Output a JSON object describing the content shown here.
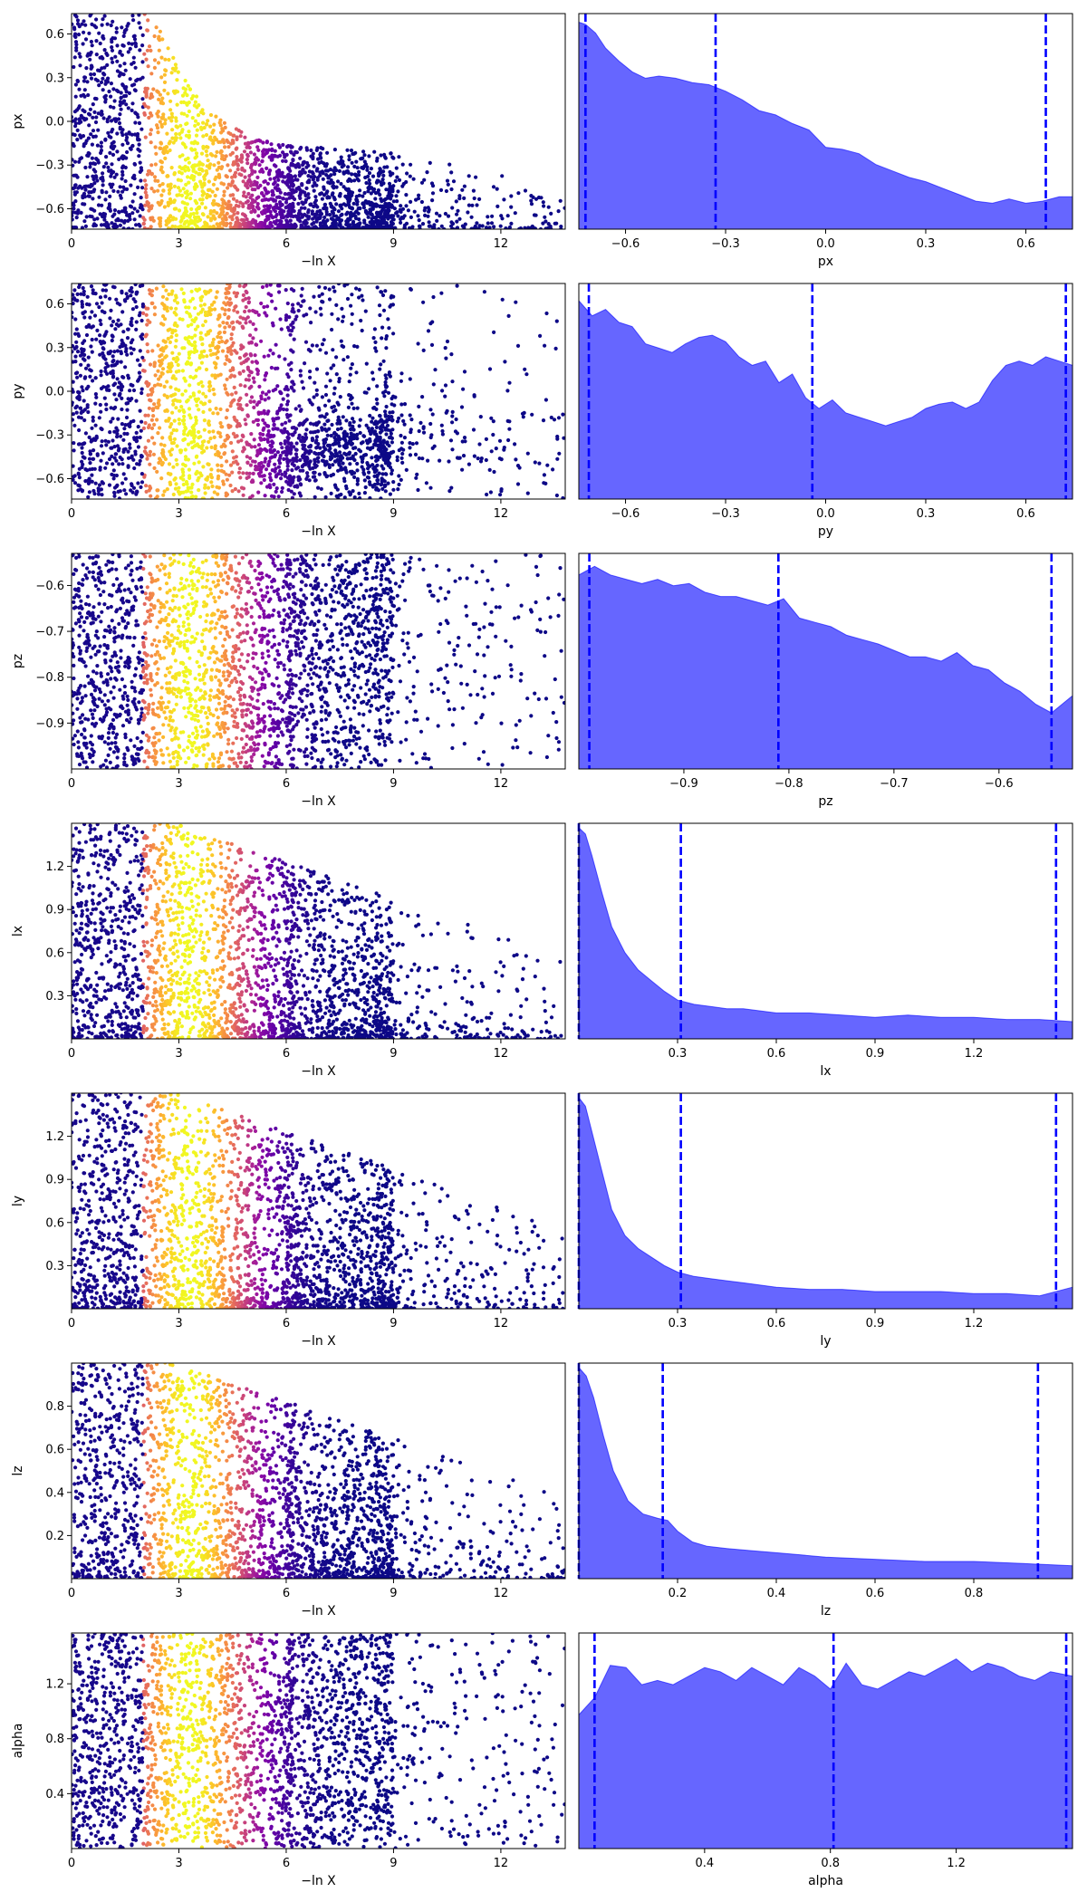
{
  "chart_data": [
    {
      "type": "scatter",
      "parameter": "px",
      "xlabel": "−ln X",
      "ylabel": "px",
      "xlim": [
        0,
        13.8
      ],
      "ylim": [
        -0.74,
        0.74
      ],
      "xticks": [
        0,
        3,
        6,
        9,
        12
      ],
      "xtick_labels": [
        "0",
        "3",
        "6",
        "9",
        "12"
      ],
      "yticks": [
        -0.6,
        -0.3,
        0.0,
        0.3,
        0.6
      ],
      "ytick_labels": [
        "−0.6",
        "−0.3",
        "0.0",
        "0.3",
        "0.6"
      ],
      "colormap": "plasma",
      "envelope_x": [
        0,
        1.8,
        2.2,
        2.6,
        3.0,
        3.4,
        4.0,
        4.6,
        5.2,
        6.0,
        7.0,
        8.0,
        9.0,
        10.0,
        11.0,
        12.0,
        13.5
      ],
      "envelope_y": [
        0.74,
        0.74,
        0.74,
        0.58,
        0.38,
        0.2,
        0.05,
        -0.05,
        -0.12,
        -0.16,
        -0.18,
        -0.2,
        -0.22,
        -0.26,
        -0.3,
        -0.36,
        -0.45
      ]
    },
    {
      "type": "area",
      "parameter": "px",
      "xlabel": "px",
      "xlim": [
        -0.74,
        0.74
      ],
      "xticks": [
        -0.6,
        -0.3,
        0.0,
        0.3,
        0.6
      ],
      "xtick_labels": [
        "−0.6",
        "−0.3",
        "0.0",
        "0.3",
        "0.6"
      ],
      "density_x": [
        -0.74,
        -0.72,
        -0.69,
        -0.66,
        -0.62,
        -0.58,
        -0.54,
        -0.5,
        -0.45,
        -0.4,
        -0.35,
        -0.3,
        -0.25,
        -0.2,
        -0.15,
        -0.1,
        -0.05,
        0.0,
        0.05,
        0.1,
        0.15,
        0.2,
        0.25,
        0.3,
        0.35,
        0.4,
        0.45,
        0.5,
        0.55,
        0.6,
        0.65,
        0.7,
        0.74
      ],
      "density_y": [
        0.96,
        0.95,
        0.91,
        0.84,
        0.78,
        0.73,
        0.7,
        0.71,
        0.7,
        0.68,
        0.67,
        0.64,
        0.6,
        0.55,
        0.53,
        0.49,
        0.46,
        0.38,
        0.37,
        0.35,
        0.3,
        0.27,
        0.24,
        0.22,
        0.19,
        0.16,
        0.13,
        0.12,
        0.14,
        0.12,
        0.13,
        0.15,
        0.15
      ],
      "dashed_lines_x": [
        -0.72,
        -0.33,
        0.66
      ],
      "fill_color": "#6666ff",
      "line_color": "#0000ff"
    },
    {
      "type": "scatter",
      "parameter": "py",
      "xlabel": "−ln X",
      "ylabel": "py",
      "xlim": [
        0,
        13.8
      ],
      "ylim": [
        -0.74,
        0.74
      ],
      "xticks": [
        0,
        3,
        6,
        9,
        12
      ],
      "xtick_labels": [
        "0",
        "3",
        "6",
        "9",
        "12"
      ],
      "yticks": [
        -0.6,
        -0.3,
        0.0,
        0.3,
        0.6
      ],
      "ytick_labels": [
        "−0.6",
        "−0.3",
        "0.0",
        "0.3",
        "0.6"
      ],
      "colormap": "plasma",
      "cluster_center": [
        -0.4
      ]
    },
    {
      "type": "area",
      "parameter": "py",
      "xlabel": "py",
      "xlim": [
        -0.74,
        0.74
      ],
      "xticks": [
        -0.6,
        -0.3,
        0.0,
        0.3,
        0.6
      ],
      "xtick_labels": [
        "−0.6",
        "−0.3",
        "0.0",
        "0.3",
        "0.6"
      ],
      "density_x": [
        -0.74,
        -0.7,
        -0.66,
        -0.62,
        -0.58,
        -0.54,
        -0.5,
        -0.46,
        -0.42,
        -0.38,
        -0.34,
        -0.3,
        -0.26,
        -0.22,
        -0.18,
        -0.14,
        -0.1,
        -0.06,
        -0.02,
        0.02,
        0.06,
        0.1,
        0.14,
        0.18,
        0.22,
        0.26,
        0.3,
        0.34,
        0.38,
        0.42,
        0.46,
        0.5,
        0.54,
        0.58,
        0.62,
        0.66,
        0.7,
        0.74
      ],
      "density_y": [
        0.92,
        0.85,
        0.88,
        0.82,
        0.8,
        0.72,
        0.7,
        0.68,
        0.72,
        0.75,
        0.76,
        0.73,
        0.66,
        0.62,
        0.64,
        0.54,
        0.58,
        0.47,
        0.42,
        0.46,
        0.4,
        0.38,
        0.36,
        0.34,
        0.36,
        0.38,
        0.42,
        0.44,
        0.45,
        0.42,
        0.45,
        0.55,
        0.62,
        0.64,
        0.62,
        0.66,
        0.64,
        0.62
      ],
      "dashed_lines_x": [
        -0.71,
        -0.04,
        0.72
      ],
      "fill_color": "#6666ff",
      "line_color": "#0000ff"
    },
    {
      "type": "scatter",
      "parameter": "pz",
      "xlabel": "−ln X",
      "ylabel": "pz",
      "xlim": [
        0,
        13.8
      ],
      "ylim": [
        -1.0,
        -0.53
      ],
      "xticks": [
        0,
        3,
        6,
        9,
        12
      ],
      "xtick_labels": [
        "0",
        "3",
        "6",
        "9",
        "12"
      ],
      "yticks": [
        -0.9,
        -0.8,
        -0.7,
        -0.6
      ],
      "ytick_labels": [
        "−0.9",
        "−0.8",
        "−0.7",
        "−0.6"
      ],
      "colormap": "plasma"
    },
    {
      "type": "area",
      "parameter": "pz",
      "xlabel": "pz",
      "xlim": [
        -1.0,
        -0.53
      ],
      "xticks": [
        -0.9,
        -0.8,
        -0.7,
        -0.6
      ],
      "xtick_labels": [
        "−0.9",
        "−0.8",
        "−0.7",
        "−0.6"
      ],
      "density_x": [
        -1.0,
        -0.985,
        -0.97,
        -0.955,
        -0.94,
        -0.925,
        -0.91,
        -0.895,
        -0.88,
        -0.865,
        -0.85,
        -0.835,
        -0.82,
        -0.805,
        -0.79,
        -0.775,
        -0.76,
        -0.745,
        -0.73,
        -0.715,
        -0.7,
        -0.685,
        -0.67,
        -0.655,
        -0.64,
        -0.625,
        -0.61,
        -0.595,
        -0.58,
        -0.565,
        -0.55,
        -0.53
      ],
      "density_y": [
        0.9,
        0.94,
        0.9,
        0.88,
        0.86,
        0.88,
        0.85,
        0.86,
        0.82,
        0.8,
        0.8,
        0.78,
        0.76,
        0.79,
        0.7,
        0.68,
        0.66,
        0.62,
        0.6,
        0.58,
        0.55,
        0.52,
        0.52,
        0.5,
        0.54,
        0.48,
        0.46,
        0.4,
        0.36,
        0.3,
        0.26,
        0.34
      ],
      "dashed_lines_x": [
        -0.99,
        -0.81,
        -0.55
      ],
      "fill_color": "#6666ff",
      "line_color": "#0000ff"
    },
    {
      "type": "scatter",
      "parameter": "lx",
      "xlabel": "−ln X",
      "ylabel": "lx",
      "xlim": [
        0,
        13.8
      ],
      "ylim": [
        0.0,
        1.5
      ],
      "xticks": [
        0,
        3,
        6,
        9,
        12
      ],
      "xtick_labels": [
        "0",
        "3",
        "6",
        "9",
        "12"
      ],
      "yticks": [
        0.3,
        0.6,
        0.9,
        1.2
      ],
      "ytick_labels": [
        "0.3",
        "0.6",
        "0.9",
        "1.2"
      ],
      "colormap": "plasma"
    },
    {
      "type": "area",
      "parameter": "lx",
      "xlabel": "lx",
      "xlim": [
        0.0,
        1.5
      ],
      "xticks": [
        0.3,
        0.6,
        0.9,
        1.2
      ],
      "xtick_labels": [
        "0.3",
        "0.6",
        "0.9",
        "1.2"
      ],
      "density_x": [
        0.0,
        0.02,
        0.04,
        0.07,
        0.1,
        0.14,
        0.18,
        0.22,
        0.26,
        0.3,
        0.35,
        0.4,
        0.45,
        0.5,
        0.6,
        0.7,
        0.8,
        0.9,
        1.0,
        1.1,
        1.2,
        1.3,
        1.4,
        1.5
      ],
      "density_y": [
        0.98,
        0.95,
        0.85,
        0.68,
        0.52,
        0.4,
        0.32,
        0.27,
        0.22,
        0.18,
        0.16,
        0.15,
        0.14,
        0.14,
        0.12,
        0.12,
        0.11,
        0.1,
        0.11,
        0.1,
        0.1,
        0.09,
        0.09,
        0.08
      ],
      "dashed_lines_x": [
        0.0,
        0.31,
        1.45
      ],
      "fill_color": "#6666ff",
      "line_color": "#0000ff"
    },
    {
      "type": "scatter",
      "parameter": "ly",
      "xlabel": "−ln X",
      "ylabel": "ly",
      "xlim": [
        0,
        13.8
      ],
      "ylim": [
        0.0,
        1.5
      ],
      "xticks": [
        0,
        3,
        6,
        9,
        12
      ],
      "xtick_labels": [
        "0",
        "3",
        "6",
        "9",
        "12"
      ],
      "yticks": [
        0.3,
        0.6,
        0.9,
        1.2
      ],
      "ytick_labels": [
        "0.3",
        "0.6",
        "0.9",
        "1.2"
      ],
      "colormap": "plasma"
    },
    {
      "type": "area",
      "parameter": "ly",
      "xlabel": "ly",
      "xlim": [
        0.0,
        1.5
      ],
      "xticks": [
        0.3,
        0.6,
        0.9,
        1.2
      ],
      "xtick_labels": [
        "0.3",
        "0.6",
        "0.9",
        "1.2"
      ],
      "density_x": [
        0.0,
        0.02,
        0.04,
        0.07,
        0.1,
        0.14,
        0.18,
        0.22,
        0.26,
        0.3,
        0.35,
        0.4,
        0.45,
        0.5,
        0.6,
        0.7,
        0.8,
        0.9,
        1.0,
        1.1,
        1.2,
        1.3,
        1.4,
        1.5
      ],
      "density_y": [
        0.98,
        0.94,
        0.82,
        0.64,
        0.46,
        0.34,
        0.28,
        0.24,
        0.2,
        0.17,
        0.15,
        0.14,
        0.13,
        0.12,
        0.1,
        0.09,
        0.09,
        0.08,
        0.08,
        0.08,
        0.07,
        0.07,
        0.06,
        0.1
      ],
      "dashed_lines_x": [
        0.0,
        0.31,
        1.45
      ],
      "fill_color": "#6666ff",
      "line_color": "#0000ff"
    },
    {
      "type": "scatter",
      "parameter": "lz",
      "xlabel": "−ln X",
      "ylabel": "lz",
      "xlim": [
        0,
        13.8
      ],
      "ylim": [
        0.0,
        1.0
      ],
      "xticks": [
        0,
        3,
        6,
        9,
        12
      ],
      "xtick_labels": [
        "0",
        "3",
        "6",
        "9",
        "12"
      ],
      "yticks": [
        0.2,
        0.4,
        0.6,
        0.8
      ],
      "ytick_labels": [
        "0.2",
        "0.4",
        "0.6",
        "0.8"
      ],
      "colormap": "plasma"
    },
    {
      "type": "area",
      "parameter": "lz",
      "xlabel": "lz",
      "xlim": [
        0.0,
        1.0
      ],
      "xticks": [
        0.2,
        0.4,
        0.6,
        0.8
      ],
      "xtick_labels": [
        "0.2",
        "0.4",
        "0.6",
        "0.8"
      ],
      "density_x": [
        0.0,
        0.015,
        0.03,
        0.05,
        0.07,
        0.1,
        0.13,
        0.16,
        0.18,
        0.2,
        0.23,
        0.26,
        0.3,
        0.35,
        0.4,
        0.45,
        0.5,
        0.6,
        0.7,
        0.8,
        0.9,
        1.0
      ],
      "density_y": [
        0.98,
        0.94,
        0.84,
        0.66,
        0.5,
        0.36,
        0.3,
        0.28,
        0.27,
        0.22,
        0.17,
        0.15,
        0.14,
        0.13,
        0.12,
        0.11,
        0.1,
        0.09,
        0.08,
        0.08,
        0.07,
        0.06
      ],
      "dashed_lines_x": [
        0.0,
        0.17,
        0.93
      ],
      "fill_color": "#6666ff",
      "line_color": "#0000ff"
    },
    {
      "type": "scatter",
      "parameter": "alpha",
      "xlabel": "−ln X",
      "ylabel": "alpha",
      "xlim": [
        0,
        13.8
      ],
      "ylim": [
        0.0,
        1.57
      ],
      "xticks": [
        0,
        3,
        6,
        9,
        12
      ],
      "xtick_labels": [
        "0",
        "3",
        "6",
        "9",
        "12"
      ],
      "yticks": [
        0.4,
        0.8,
        1.2
      ],
      "ytick_labels": [
        "0.4",
        "0.8",
        "1.2"
      ],
      "colormap": "plasma"
    },
    {
      "type": "area",
      "parameter": "alpha",
      "xlabel": "alpha",
      "xlim": [
        0.0,
        1.57
      ],
      "xticks": [
        0.4,
        0.8,
        1.2
      ],
      "xtick_labels": [
        "0.4",
        "0.8",
        "1.2"
      ],
      "density_x": [
        0.0,
        0.05,
        0.1,
        0.15,
        0.2,
        0.25,
        0.3,
        0.35,
        0.4,
        0.45,
        0.5,
        0.55,
        0.6,
        0.65,
        0.7,
        0.75,
        0.8,
        0.85,
        0.9,
        0.95,
        1.0,
        1.05,
        1.1,
        1.15,
        1.2,
        1.25,
        1.3,
        1.35,
        1.4,
        1.45,
        1.5,
        1.57
      ],
      "density_y": [
        0.62,
        0.7,
        0.85,
        0.84,
        0.76,
        0.78,
        0.76,
        0.8,
        0.84,
        0.82,
        0.78,
        0.84,
        0.8,
        0.76,
        0.84,
        0.8,
        0.74,
        0.86,
        0.76,
        0.74,
        0.78,
        0.82,
        0.8,
        0.84,
        0.88,
        0.82,
        0.86,
        0.84,
        0.8,
        0.78,
        0.82,
        0.8
      ],
      "dashed_lines_x": [
        0.05,
        0.81,
        1.55
      ],
      "fill_color": "#6666ff",
      "line_color": "#0000ff"
    }
  ]
}
